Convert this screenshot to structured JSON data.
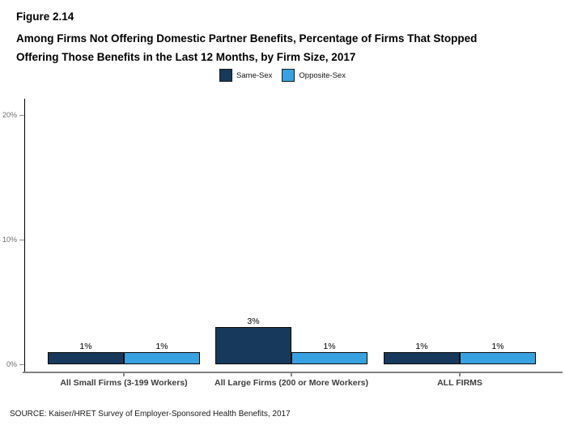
{
  "figure": {
    "label": "Figure 2.14",
    "title_line1": "Among Firms Not Offering Domestic Partner Benefits, Percentage of Firms That Stopped",
    "title_line2": "Offering Those Benefits in the Last 12 Months, by Firm Size, 2017"
  },
  "chart_data": {
    "type": "bar",
    "title": "Among Firms Not Offering Domestic Partner Benefits, Percentage of Firms That Stopped Offering Those Benefits in the Last 12 Months, by Firm Size, 2017",
    "categories": [
      "All Small Firms (3-199 Workers)",
      "All Large Firms (200 or More Workers)",
      "ALL FIRMS"
    ],
    "series": [
      {
        "name": "Same-Sex",
        "color": "#17395c",
        "values": [
          1,
          3,
          1
        ],
        "data_labels": [
          "1%",
          "3%",
          "1%"
        ]
      },
      {
        "name": "Opposite-Sex",
        "color": "#37a1e2",
        "values": [
          1,
          1,
          1
        ],
        "data_labels": [
          "1%",
          "1%",
          "1%"
        ]
      }
    ],
    "xlabel": "",
    "ylabel": "",
    "yticks": [
      {
        "value": 0,
        "label": "0%"
      },
      {
        "value": 10,
        "label": "10%"
      },
      {
        "value": 20,
        "label": "20%"
      }
    ],
    "ylim": [
      0,
      21.5
    ],
    "grid": false,
    "legend_position": "top-center"
  },
  "colors": {
    "same_sex": "#17395c",
    "opposite_sex": "#37a1e2",
    "axis_line": "#828282",
    "tick_mark": "#8a8a8a",
    "tick_label": "#6e6e6e",
    "category_label": "#3d3d3d",
    "bar_border": "#0a0a0a",
    "title_text": "#000000"
  },
  "source": "SOURCE: Kaiser/HRET Survey of Employer-Sponsored Health Benefits, 2017"
}
